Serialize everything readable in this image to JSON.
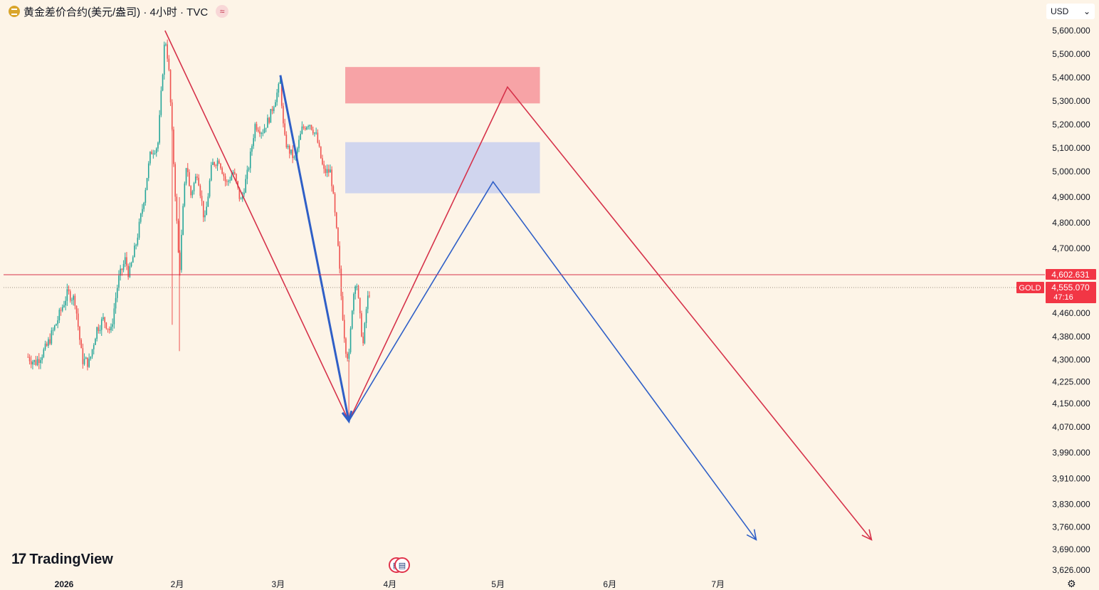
{
  "header": {
    "title": "黄金差价合约(美元/盎司) · 4小时 · TVC",
    "currency": "USD",
    "coin_icon": "gold-coin-icon",
    "compare_icon": "approx-icon"
  },
  "branding": {
    "logo_text": "TradingView"
  },
  "colors": {
    "background": "#fdf4e7",
    "up": "#26a69a",
    "down": "#ef5350",
    "red_line": "#d6324a",
    "blue_line": "#2f5fc7",
    "resistance_zone": "#f7a3a6",
    "support_zone": "#d0d5ee",
    "price_label": "#f23645"
  },
  "chart_data": {
    "type": "candlestick",
    "symbol": "GOLD",
    "y_axis": {
      "ticks": [
        5600,
        5500,
        5400,
        5300,
        5200,
        5100,
        5000,
        4900,
        4800,
        4700,
        4460,
        4380,
        4300,
        4225,
        4150,
        4070,
        3990,
        3910,
        3830,
        3760,
        3690,
        3626
      ],
      "tick_labels": [
        "5,600.000",
        "5,500.000",
        "5,400.000",
        "5,300.000",
        "5,200.000",
        "5,100.000",
        "5,000.000",
        "4,900.000",
        "4,800.000",
        "4,700.000",
        "4,460.000",
        "4,380.000",
        "4,300.000",
        "4,225.000",
        "4,150.000",
        "4,070.000",
        "3,990.000",
        "3,910.000",
        "3,830.000",
        "3,760.000",
        "3,690.000",
        "3,626.000"
      ],
      "range": [
        3600,
        5650
      ]
    },
    "x_axis": {
      "labels": [
        "2026",
        "2月",
        "3月",
        "4月",
        "5月",
        "6月",
        "7月"
      ],
      "label_dates": [
        "2026-01-01",
        "2026-02-01",
        "2026-03-01",
        "2026-04-01",
        "2026-05-01",
        "2026-06-01",
        "2026-07-01"
      ]
    },
    "price_markers": [
      {
        "value": 4602.631,
        "label": "4,602.631"
      },
      {
        "value": 4555.07,
        "label": "4,555.070",
        "countdown": "47:16",
        "tag": "GOLD"
      }
    ],
    "price_path": [
      [
        "2025-12-22",
        4310
      ],
      [
        "2025-12-24",
        4290
      ],
      [
        "2025-12-27",
        4340
      ],
      [
        "2025-12-30",
        4430
      ],
      [
        "2026-01-02",
        4535
      ],
      [
        "2026-01-04",
        4510
      ],
      [
        "2026-01-06",
        4300
      ],
      [
        "2026-01-08",
        4290
      ],
      [
        "2026-01-10",
        4405
      ],
      [
        "2026-01-12",
        4440
      ],
      [
        "2026-01-14",
        4395
      ],
      [
        "2026-01-16",
        4580
      ],
      [
        "2026-01-18",
        4660
      ],
      [
        "2026-01-19",
        4600
      ],
      [
        "2026-01-21",
        4720
      ],
      [
        "2026-01-23",
        4880
      ],
      [
        "2026-01-25",
        5080
      ],
      [
        "2026-01-27",
        5110
      ],
      [
        "2026-01-29",
        5580
      ],
      [
        "2026-01-30",
        5450
      ],
      [
        "2026-01-31",
        5150
      ],
      [
        "2026-02-01",
        4870
      ],
      [
        "2026-02-02",
        4600
      ],
      [
        "2026-02-03",
        4850
      ],
      [
        "2026-02-04",
        5050
      ],
      [
        "2026-02-05",
        4900
      ],
      [
        "2026-02-07",
        5000
      ],
      [
        "2026-02-09",
        4800
      ],
      [
        "2026-02-11",
        5030
      ],
      [
        "2026-02-13",
        5050
      ],
      [
        "2026-02-15",
        4950
      ],
      [
        "2026-02-17",
        5000
      ],
      [
        "2026-02-19",
        4880
      ],
      [
        "2026-02-21",
        5000
      ],
      [
        "2026-02-23",
        5200
      ],
      [
        "2026-02-25",
        5170
      ],
      [
        "2026-02-27",
        5230
      ],
      [
        "2026-03-01",
        5330
      ],
      [
        "2026-03-02",
        5380
      ],
      [
        "2026-03-03",
        5150
      ],
      [
        "2026-03-04",
        5100
      ],
      [
        "2026-03-06",
        5050
      ],
      [
        "2026-03-08",
        5180
      ],
      [
        "2026-03-10",
        5210
      ],
      [
        "2026-03-12",
        5150
      ],
      [
        "2026-03-14",
        5000
      ],
      [
        "2026-03-16",
        5000
      ],
      [
        "2026-03-17",
        4850
      ],
      [
        "2026-03-18",
        4700
      ],
      [
        "2026-03-19",
        4500
      ],
      [
        "2026-03-20",
        4350
      ],
      [
        "2026-03-21",
        4300
      ],
      [
        "2026-03-22",
        4500
      ],
      [
        "2026-03-23",
        4600
      ],
      [
        "2026-03-24",
        4450
      ],
      [
        "2026-03-25",
        4350
      ],
      [
        "2026-03-26",
        4500
      ],
      [
        "2026-03-27",
        4555
      ]
    ],
    "zones": [
      {
        "name": "resistance",
        "from": "2026-03-20",
        "to": "2026-05-13",
        "low": 5290,
        "high": 5445
      },
      {
        "name": "support",
        "from": "2026-03-20",
        "to": "2026-05-13",
        "low": 4915,
        "high": 5125
      }
    ],
    "drawings": [
      {
        "color": "red",
        "points": [
          [
            "2026-01-29",
            5600
          ],
          [
            "2026-03-21",
            4090
          ],
          [
            "2026-05-04",
            5360
          ],
          [
            "2026-08-13",
            3720
          ]
        ],
        "arrow_end": true
      },
      {
        "color": "blue",
        "points": [
          [
            "2026-03-02",
            5410
          ],
          [
            "2026-03-21",
            4090
          ]
        ],
        "arrow_end": true,
        "thick": true
      },
      {
        "color": "blue",
        "points": [
          [
            "2026-03-21",
            4090
          ],
          [
            "2026-04-30",
            4960
          ],
          [
            "2026-07-12",
            3720
          ]
        ],
        "arrow_end": true
      }
    ]
  }
}
